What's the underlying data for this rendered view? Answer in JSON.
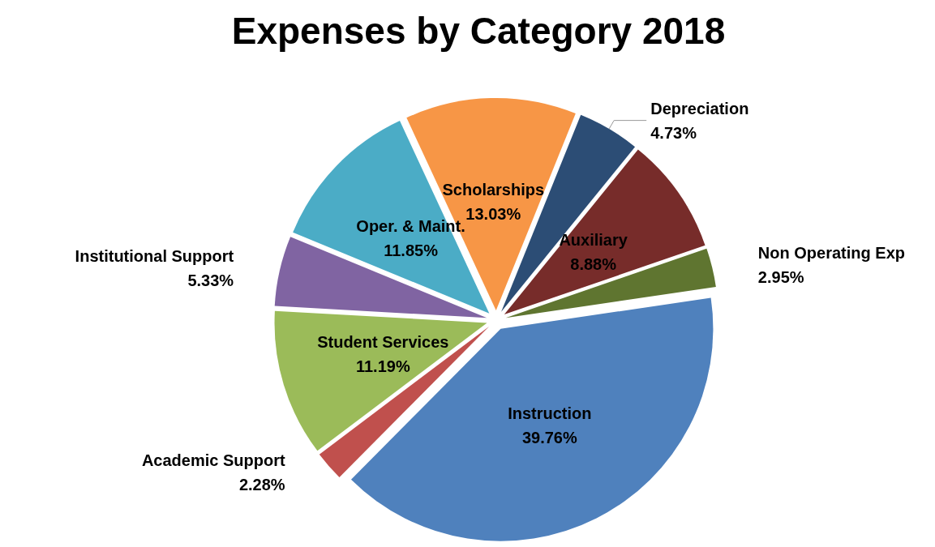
{
  "chart_data": {
    "type": "pie",
    "title": "Expenses by Category 2018",
    "categories": [
      "Depreciation",
      "Auxiliary",
      "Non Operating Exp",
      "Instruction",
      "Academic Support",
      "Student Services",
      "Institutional Support",
      "Oper. & Maint.",
      "Scholarships"
    ],
    "values": [
      4.73,
      8.88,
      2.95,
      39.76,
      2.28,
      11.19,
      5.33,
      11.85,
      13.03
    ],
    "value_labels": [
      "4.73%",
      "8.88%",
      "2.95%",
      "39.76%",
      "2.28%",
      "11.19%",
      "5.33%",
      "11.85%",
      "13.03%"
    ],
    "colors": [
      "#2c4d75",
      "#772c2a",
      "#5f7530",
      "#4f81bd",
      "#c0504d",
      "#9bbb59",
      "#8064a2",
      "#4bacc6",
      "#f79646"
    ],
    "legend": false
  }
}
